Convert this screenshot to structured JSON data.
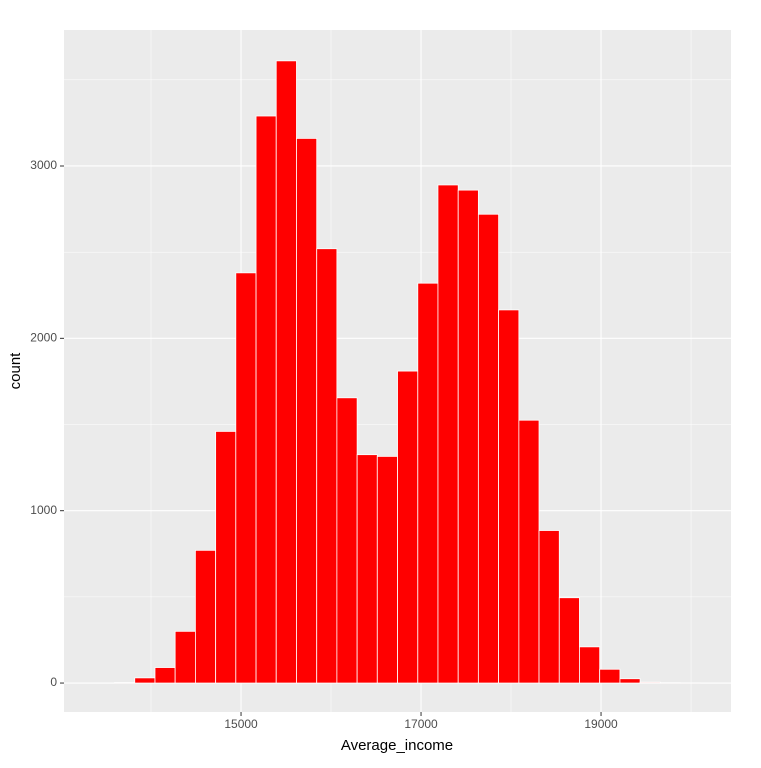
{
  "chart_data": {
    "type": "histogram",
    "x_label": "Average_income",
    "y_label": "count",
    "bins": [
      13370,
      13595,
      13819,
      14044,
      14268,
      14493,
      14718,
      14942,
      15167,
      15391,
      15616,
      15841,
      16065,
      16290,
      16514,
      16739,
      16964,
      17188,
      17413,
      17637,
      17862,
      18087,
      18311,
      18536,
      18760,
      18985,
      19210,
      19434,
      19659,
      19883,
      20108
    ],
    "values": [
      0,
      3,
      30,
      90,
      300,
      770,
      1460,
      2380,
      3290,
      3610,
      3160,
      2520,
      1655,
      1325,
      1315,
      1810,
      2320,
      2890,
      2860,
      2720,
      2165,
      1525,
      885,
      495,
      210,
      80,
      25,
      5,
      2,
      1
    ],
    "color": "#ff0000",
    "edge_color": "#ffffff",
    "xlim": [
      13033,
      20444
    ],
    "ylim": [
      -168,
      3789
    ],
    "xticks": [
      15000,
      17000,
      19000
    ],
    "yticks": [
      0,
      1000,
      2000,
      3000
    ],
    "x_minor_grid": [
      14000,
      16000,
      18000,
      20000
    ],
    "y_minor_grid": [
      500,
      1500,
      2500,
      3500
    ],
    "grid": true,
    "background": "#ebebeb"
  }
}
